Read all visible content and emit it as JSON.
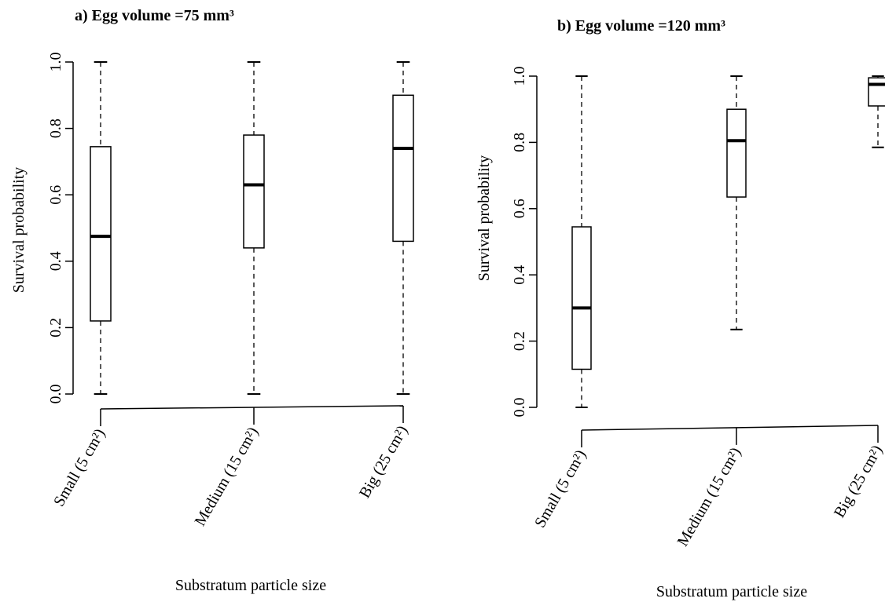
{
  "chart_data": [
    {
      "type": "box",
      "title": "a) Egg volume =75 mm³",
      "xlabel": "Substratum particle size",
      "ylabel": "Survival probability",
      "ylim": [
        0,
        1
      ],
      "yticks": [
        "0.0",
        "0.2",
        "0.4",
        "0.6",
        "0.8",
        "1.0"
      ],
      "categories": [
        "Small (5 cm²)",
        "Medium (15 cm²)",
        "Big (25 cm²)"
      ],
      "boxes": [
        {
          "min": 0.0,
          "q1": 0.22,
          "median": 0.475,
          "q3": 0.745,
          "max": 1.0
        },
        {
          "min": 0.0,
          "q1": 0.44,
          "median": 0.63,
          "q3": 0.78,
          "max": 1.0
        },
        {
          "min": 0.0,
          "q1": 0.46,
          "median": 0.74,
          "q3": 0.9,
          "max": 1.0
        }
      ]
    },
    {
      "type": "box",
      "title": "b) Egg volume =120 mm³",
      "xlabel": "Substratum particle size",
      "ylabel": "Survival probability",
      "ylim": [
        0,
        1
      ],
      "yticks": [
        "0.0",
        "0.2",
        "0.4",
        "0.6",
        "0.8",
        "1.0"
      ],
      "categories": [
        "Small (5 cm²)",
        "Medium (15 cm²)",
        "Big (25 cm²)"
      ],
      "boxes": [
        {
          "min": 0.0,
          "q1": 0.115,
          "median": 0.3,
          "q3": 0.545,
          "max": 1.0
        },
        {
          "min": 0.235,
          "q1": 0.635,
          "median": 0.805,
          "q3": 0.9,
          "max": 1.0
        },
        {
          "min": 0.785,
          "q1": 0.91,
          "median": 0.975,
          "q3": 0.995,
          "max": 1.0
        }
      ]
    }
  ]
}
